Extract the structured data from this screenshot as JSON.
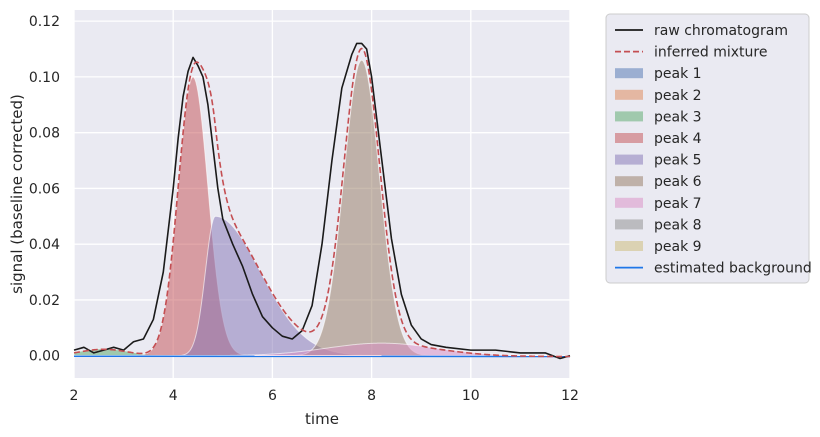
{
  "chart_data": {
    "type": "area",
    "title": "",
    "xlabel": "time",
    "ylabel": "signal (baseline corrected)",
    "xlim": [
      2,
      12
    ],
    "ylim": [
      -0.008,
      0.124
    ],
    "x_ticks": [
      2,
      4,
      6,
      8,
      10,
      12
    ],
    "x_tick_labels": [
      "2",
      "4",
      "6",
      "8",
      "10",
      "12"
    ],
    "y_ticks": [
      0.0,
      0.02,
      0.04,
      0.06,
      0.08,
      0.1,
      0.12
    ],
    "y_tick_labels": [
      "0.00",
      "0.02",
      "0.04",
      "0.06",
      "0.08",
      "0.10",
      "0.12"
    ],
    "grid": true,
    "legend_position": "outside-right-top",
    "background_color": "#eaeaf2",
    "peaks": [
      {
        "name": "peak 1",
        "color": "#4c72b0",
        "shape": "gauss",
        "amp": 0.0,
        "center": 5.0,
        "sigma": 0.5
      },
      {
        "name": "peak 2",
        "color": "#dd8452",
        "shape": "gauss",
        "amp": 0.0,
        "center": 5.0,
        "sigma": 0.5
      },
      {
        "name": "peak 3",
        "color": "#55a868",
        "shape": "gauss",
        "amp": 0.0025,
        "center": 2.6,
        "sigma": 0.5
      },
      {
        "name": "peak 4",
        "color": "#c44e52",
        "shape": "gauss",
        "amp": 0.1,
        "center": 4.4,
        "sigma": 0.3
      },
      {
        "name": "peak 5",
        "color": "#8172b3",
        "shape": "tailing",
        "amp": 0.05,
        "center": 4.85,
        "rise": 0.2,
        "tail": 0.9
      },
      {
        "name": "peak 6",
        "color": "#937860",
        "shape": "gauss",
        "amp": 0.106,
        "center": 7.8,
        "sigma": 0.36
      },
      {
        "name": "peak 7",
        "color": "#da8bc3",
        "shape": "gauss",
        "amp": 0.0045,
        "center": 8.2,
        "sigma": 1.1
      },
      {
        "name": "peak 8",
        "color": "#8c8c8c",
        "shape": "gauss",
        "amp": 0.0,
        "center": 5.0,
        "sigma": 0.5
      },
      {
        "name": "peak 9",
        "color": "#ccb974",
        "shape": "gauss",
        "amp": 0.0,
        "center": 5.0,
        "sigma": 0.5
      }
    ],
    "background": {
      "name": "estimated background",
      "color": "#1f77e8",
      "start": -0.0002,
      "end": -0.0003
    },
    "mixture": {
      "name": "inferred mixture",
      "color": "#c44e52"
    },
    "raw": {
      "name": "raw chromatogram",
      "color": "#1a1a1a",
      "x": [
        2.0,
        2.2,
        2.4,
        2.6,
        2.8,
        3.0,
        3.2,
        3.4,
        3.6,
        3.8,
        4.0,
        4.1,
        4.2,
        4.3,
        4.4,
        4.5,
        4.6,
        4.7,
        4.8,
        4.9,
        5.0,
        5.2,
        5.4,
        5.6,
        5.8,
        6.0,
        6.2,
        6.4,
        6.6,
        6.8,
        7.0,
        7.2,
        7.4,
        7.6,
        7.7,
        7.8,
        7.9,
        8.0,
        8.2,
        8.4,
        8.6,
        8.8,
        9.0,
        9.2,
        9.5,
        10.0,
        10.5,
        11.0,
        11.5,
        11.8,
        12.0
      ],
      "y": [
        0.002,
        0.003,
        0.001,
        0.002,
        0.003,
        0.002,
        0.005,
        0.006,
        0.013,
        0.03,
        0.06,
        0.078,
        0.093,
        0.102,
        0.107,
        0.104,
        0.1,
        0.09,
        0.075,
        0.06,
        0.049,
        0.04,
        0.032,
        0.022,
        0.014,
        0.01,
        0.007,
        0.006,
        0.009,
        0.018,
        0.04,
        0.07,
        0.096,
        0.108,
        0.112,
        0.112,
        0.11,
        0.1,
        0.071,
        0.042,
        0.022,
        0.011,
        0.006,
        0.004,
        0.003,
        0.002,
        0.002,
        0.001,
        0.001,
        -0.001,
        0.0
      ]
    }
  }
}
